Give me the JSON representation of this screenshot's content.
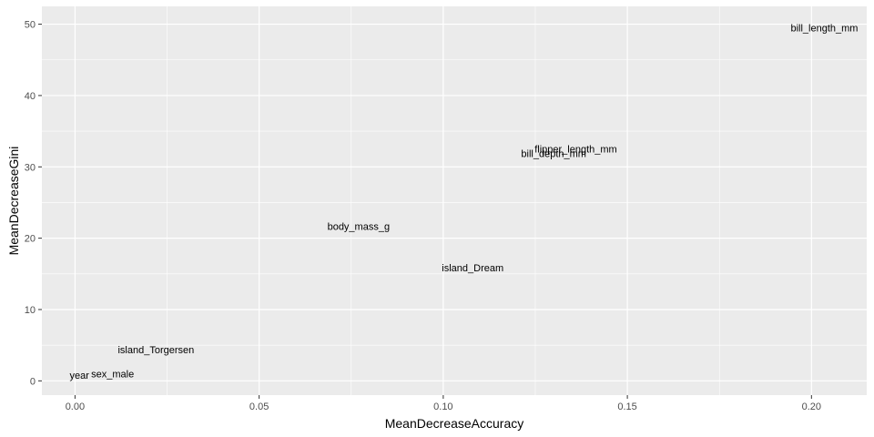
{
  "chart_data": {
    "type": "scatter",
    "geom": "text",
    "xlabel": "MeanDecreaseAccuracy",
    "ylabel": "MeanDecreaseGini",
    "xlim": [
      -0.009,
      0.215
    ],
    "ylim": [
      -2,
      52.5
    ],
    "x_ticks": [
      0.0,
      0.05,
      0.1,
      0.15,
      0.2
    ],
    "x_tick_labels": [
      "0.00",
      "0.05",
      "0.10",
      "0.15",
      "0.20"
    ],
    "y_ticks": [
      0,
      10,
      20,
      30,
      40,
      50
    ],
    "y_tick_labels": [
      "0",
      "10",
      "20",
      "30",
      "40",
      "50"
    ],
    "grid": true,
    "points": [
      {
        "label": "bill_length_mm",
        "x": 0.2035,
        "y": 49.5
      },
      {
        "label": "flipper_length_mm",
        "x": 0.136,
        "y": 32.5
      },
      {
        "label": "bill_depth_mm",
        "x": 0.13,
        "y": 31.9
      },
      {
        "label": "body_mass_g",
        "x": 0.077,
        "y": 21.7
      },
      {
        "label": "island_Dream",
        "x": 0.108,
        "y": 15.9
      },
      {
        "label": "island_Torgersen",
        "x": 0.022,
        "y": 4.4
      },
      {
        "label": "year",
        "x": 0.0012,
        "y": 0.8
      },
      {
        "label": "sex_male",
        "x": 0.0102,
        "y": 1.0
      }
    ]
  },
  "colors": {
    "panel": "#ebebeb",
    "grid_major": "#ffffff",
    "text": "#000000",
    "tick_text": "#4d4d4d",
    "tick_mark": "#333333"
  }
}
